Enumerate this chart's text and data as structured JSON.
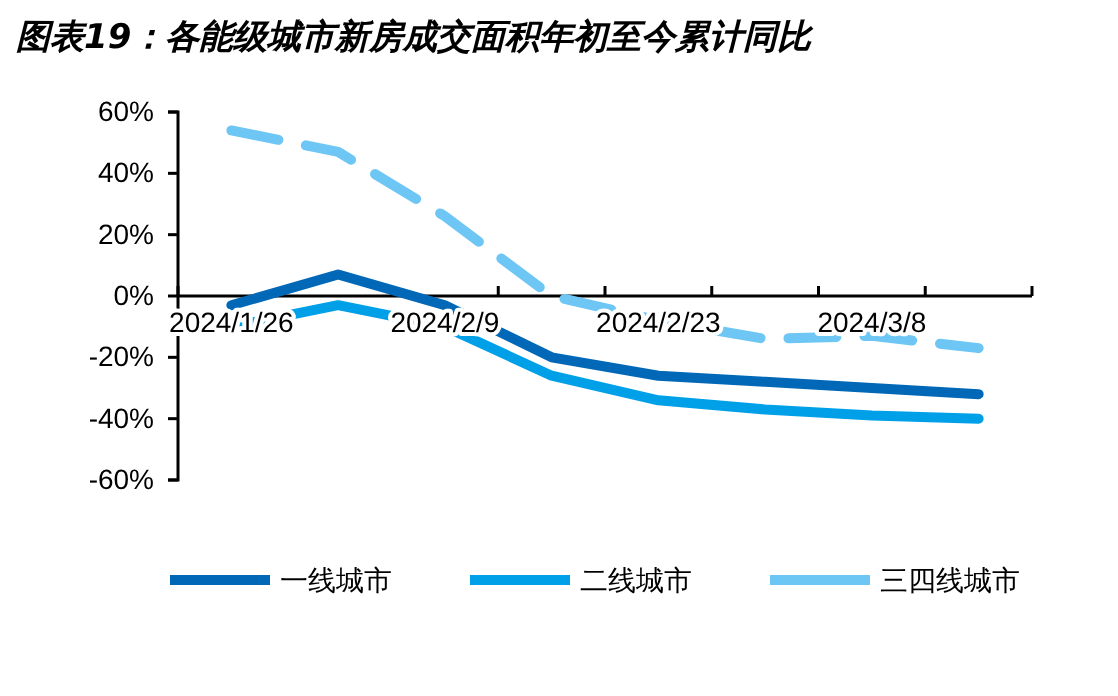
{
  "chart_data": {
    "type": "line",
    "title": "图表19：各能级城市新房成交面积年初至今累计同比",
    "categories": [
      "2024/1/26",
      null,
      "2024/2/9",
      null,
      "2024/2/23",
      null,
      "2024/3/8",
      null
    ],
    "series": [
      {
        "name": "一线城市",
        "color": "#0068b7",
        "values": [
          -3,
          7,
          -3,
          -20,
          -26,
          -28,
          -30,
          -32
        ]
      },
      {
        "name": "二线城市",
        "color": "#00a0e9",
        "values": [
          -10,
          -3,
          -10,
          -26,
          -34,
          -37,
          -39,
          -40
        ]
      },
      {
        "name": "三四线城市",
        "color": "#6ec6f5",
        "line_style": "dashed",
        "values": [
          54,
          47,
          26,
          0,
          -8,
          -14,
          -13,
          -17
        ]
      }
    ],
    "ylim": [
      -60,
      60
    ],
    "yticks": [
      {
        "value": -60,
        "label": "-60%"
      },
      {
        "value": -40,
        "label": "-40%"
      },
      {
        "value": -20,
        "label": "-20%"
      },
      {
        "value": 0,
        "label": "0%"
      },
      {
        "value": 20,
        "label": "20%"
      },
      {
        "value": 40,
        "label": "40%"
      },
      {
        "value": 60,
        "label": "60%"
      }
    ],
    "legend": "bottom",
    "marker": "none",
    "grid": false
  }
}
